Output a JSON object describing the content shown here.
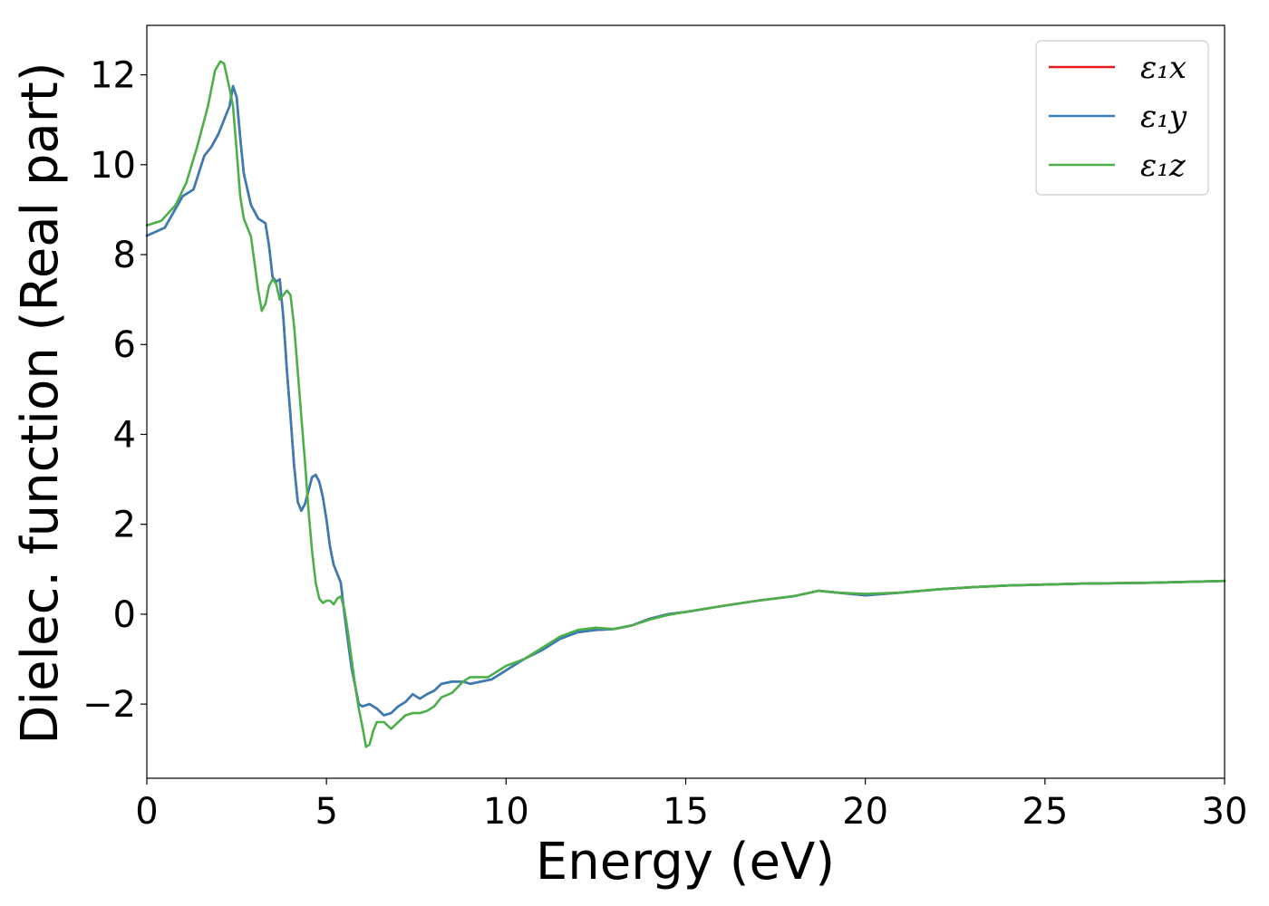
{
  "chart_data": {
    "type": "line",
    "xlabel": "Energy (eV)",
    "ylabel": "Dielec. function (Real part)",
    "xlim": [
      0,
      30
    ],
    "ylim": [
      -3.65,
      13.1
    ],
    "xticks": [
      0,
      5,
      10,
      15,
      20,
      25,
      30
    ],
    "xtick_labels": [
      "0",
      "5",
      "10",
      "15",
      "20",
      "25",
      "30"
    ],
    "yticks": [
      -2,
      0,
      2,
      4,
      6,
      8,
      10,
      12
    ],
    "ytick_labels": [
      "−2",
      "0",
      "2",
      "4",
      "6",
      "8",
      "10",
      "12"
    ],
    "grid": false,
    "legend_position": "top-right",
    "series": [
      {
        "name": "ε₁x",
        "color": "#e41a1c",
        "points": [
          [
            0,
            8.42
          ],
          [
            0.5,
            8.6
          ],
          [
            1,
            9.3
          ],
          [
            1.3,
            9.45
          ],
          [
            1.6,
            10.2
          ],
          [
            1.8,
            10.4
          ],
          [
            2.0,
            10.7
          ],
          [
            2.2,
            11.1
          ],
          [
            2.3,
            11.3
          ],
          [
            2.4,
            11.75
          ],
          [
            2.5,
            11.5
          ],
          [
            2.6,
            10.6
          ],
          [
            2.7,
            9.8
          ],
          [
            2.9,
            9.1
          ],
          [
            3.1,
            8.8
          ],
          [
            3.3,
            8.7
          ],
          [
            3.4,
            8.2
          ],
          [
            3.5,
            7.5
          ],
          [
            3.6,
            7.4
          ],
          [
            3.7,
            7.45
          ],
          [
            3.8,
            6.6
          ],
          [
            3.9,
            5.4
          ],
          [
            4.0,
            4.4
          ],
          [
            4.1,
            3.3
          ],
          [
            4.2,
            2.5
          ],
          [
            4.3,
            2.3
          ],
          [
            4.4,
            2.45
          ],
          [
            4.5,
            2.75
          ],
          [
            4.6,
            3.05
          ],
          [
            4.7,
            3.1
          ],
          [
            4.8,
            2.95
          ],
          [
            4.9,
            2.6
          ],
          [
            5.0,
            2.1
          ],
          [
            5.1,
            1.5
          ],
          [
            5.2,
            1.1
          ],
          [
            5.3,
            0.9
          ],
          [
            5.4,
            0.7
          ],
          [
            5.5,
            0.0
          ],
          [
            5.6,
            -0.6
          ],
          [
            5.7,
            -1.2
          ],
          [
            5.8,
            -1.6
          ],
          [
            5.9,
            -2.0
          ],
          [
            6.0,
            -2.05
          ],
          [
            6.2,
            -2.0
          ],
          [
            6.4,
            -2.1
          ],
          [
            6.6,
            -2.25
          ],
          [
            6.8,
            -2.2
          ],
          [
            7.0,
            -2.05
          ],
          [
            7.2,
            -1.95
          ],
          [
            7.4,
            -1.78
          ],
          [
            7.6,
            -1.88
          ],
          [
            7.8,
            -1.78
          ],
          [
            8.0,
            -1.7
          ],
          [
            8.2,
            -1.55
          ],
          [
            8.5,
            -1.5
          ],
          [
            8.8,
            -1.5
          ],
          [
            9.0,
            -1.55
          ],
          [
            9.3,
            -1.5
          ],
          [
            9.6,
            -1.45
          ],
          [
            10.0,
            -1.25
          ],
          [
            10.5,
            -1.0
          ],
          [
            11.0,
            -0.8
          ],
          [
            11.5,
            -0.55
          ],
          [
            12.0,
            -0.4
          ],
          [
            12.5,
            -0.35
          ],
          [
            13.0,
            -0.33
          ],
          [
            13.5,
            -0.25
          ],
          [
            14.0,
            -0.1
          ],
          [
            14.5,
            0.0
          ],
          [
            15.0,
            0.05
          ],
          [
            16.0,
            0.18
          ],
          [
            17.0,
            0.3
          ],
          [
            18.0,
            0.4
          ],
          [
            18.7,
            0.52
          ],
          [
            19.2,
            0.48
          ],
          [
            20.0,
            0.42
          ],
          [
            21.0,
            0.48
          ],
          [
            22.0,
            0.55
          ],
          [
            23.0,
            0.6
          ],
          [
            24.0,
            0.64
          ],
          [
            25.0,
            0.66
          ],
          [
            26.0,
            0.68
          ],
          [
            27.0,
            0.69
          ],
          [
            28.0,
            0.7
          ],
          [
            29.0,
            0.72
          ],
          [
            30.0,
            0.74
          ]
        ]
      },
      {
        "name": "ε₁y",
        "color": "#377eb8",
        "points": [
          [
            0,
            8.42
          ],
          [
            0.5,
            8.6
          ],
          [
            1,
            9.3
          ],
          [
            1.3,
            9.45
          ],
          [
            1.6,
            10.2
          ],
          [
            1.8,
            10.4
          ],
          [
            2.0,
            10.7
          ],
          [
            2.2,
            11.1
          ],
          [
            2.3,
            11.3
          ],
          [
            2.4,
            11.75
          ],
          [
            2.5,
            11.5
          ],
          [
            2.6,
            10.6
          ],
          [
            2.7,
            9.8
          ],
          [
            2.9,
            9.1
          ],
          [
            3.1,
            8.8
          ],
          [
            3.3,
            8.7
          ],
          [
            3.4,
            8.2
          ],
          [
            3.5,
            7.5
          ],
          [
            3.6,
            7.4
          ],
          [
            3.7,
            7.45
          ],
          [
            3.8,
            6.6
          ],
          [
            3.9,
            5.4
          ],
          [
            4.0,
            4.4
          ],
          [
            4.1,
            3.3
          ],
          [
            4.2,
            2.5
          ],
          [
            4.3,
            2.3
          ],
          [
            4.4,
            2.45
          ],
          [
            4.5,
            2.75
          ],
          [
            4.6,
            3.05
          ],
          [
            4.7,
            3.1
          ],
          [
            4.8,
            2.95
          ],
          [
            4.9,
            2.6
          ],
          [
            5.0,
            2.1
          ],
          [
            5.1,
            1.5
          ],
          [
            5.2,
            1.1
          ],
          [
            5.3,
            0.9
          ],
          [
            5.4,
            0.7
          ],
          [
            5.5,
            0.0
          ],
          [
            5.6,
            -0.6
          ],
          [
            5.7,
            -1.2
          ],
          [
            5.8,
            -1.6
          ],
          [
            5.9,
            -2.0
          ],
          [
            6.0,
            -2.05
          ],
          [
            6.2,
            -2.0
          ],
          [
            6.4,
            -2.1
          ],
          [
            6.6,
            -2.25
          ],
          [
            6.8,
            -2.2
          ],
          [
            7.0,
            -2.05
          ],
          [
            7.2,
            -1.95
          ],
          [
            7.4,
            -1.78
          ],
          [
            7.6,
            -1.88
          ],
          [
            7.8,
            -1.78
          ],
          [
            8.0,
            -1.7
          ],
          [
            8.2,
            -1.55
          ],
          [
            8.5,
            -1.5
          ],
          [
            8.8,
            -1.5
          ],
          [
            9.0,
            -1.55
          ],
          [
            9.3,
            -1.5
          ],
          [
            9.6,
            -1.45
          ],
          [
            10.0,
            -1.25
          ],
          [
            10.5,
            -1.0
          ],
          [
            11.0,
            -0.8
          ],
          [
            11.5,
            -0.55
          ],
          [
            12.0,
            -0.4
          ],
          [
            12.5,
            -0.35
          ],
          [
            13.0,
            -0.33
          ],
          [
            13.5,
            -0.25
          ],
          [
            14.0,
            -0.1
          ],
          [
            14.5,
            0.0
          ],
          [
            15.0,
            0.05
          ],
          [
            16.0,
            0.18
          ],
          [
            17.0,
            0.3
          ],
          [
            18.0,
            0.4
          ],
          [
            18.7,
            0.52
          ],
          [
            19.2,
            0.48
          ],
          [
            20.0,
            0.42
          ],
          [
            21.0,
            0.48
          ],
          [
            22.0,
            0.55
          ],
          [
            23.0,
            0.6
          ],
          [
            24.0,
            0.64
          ],
          [
            25.0,
            0.66
          ],
          [
            26.0,
            0.68
          ],
          [
            27.0,
            0.69
          ],
          [
            28.0,
            0.7
          ],
          [
            29.0,
            0.72
          ],
          [
            30.0,
            0.74
          ]
        ]
      },
      {
        "name": "ε₁z",
        "color": "#4daf4a",
        "points": [
          [
            0,
            8.65
          ],
          [
            0.4,
            8.75
          ],
          [
            0.8,
            9.1
          ],
          [
            1.1,
            9.6
          ],
          [
            1.4,
            10.4
          ],
          [
            1.7,
            11.3
          ],
          [
            1.9,
            12.1
          ],
          [
            2.05,
            12.3
          ],
          [
            2.15,
            12.25
          ],
          [
            2.3,
            11.7
          ],
          [
            2.4,
            11.3
          ],
          [
            2.5,
            10.3
          ],
          [
            2.6,
            9.3
          ],
          [
            2.7,
            8.8
          ],
          [
            2.9,
            8.4
          ],
          [
            3.0,
            7.8
          ],
          [
            3.1,
            7.2
          ],
          [
            3.2,
            6.75
          ],
          [
            3.3,
            6.9
          ],
          [
            3.4,
            7.3
          ],
          [
            3.5,
            7.45
          ],
          [
            3.6,
            7.35
          ],
          [
            3.7,
            7.0
          ],
          [
            3.8,
            7.1
          ],
          [
            3.9,
            7.2
          ],
          [
            4.0,
            7.1
          ],
          [
            4.1,
            6.4
          ],
          [
            4.2,
            5.4
          ],
          [
            4.3,
            4.4
          ],
          [
            4.4,
            3.4
          ],
          [
            4.5,
            2.3
          ],
          [
            4.6,
            1.4
          ],
          [
            4.7,
            0.7
          ],
          [
            4.8,
            0.35
          ],
          [
            4.9,
            0.25
          ],
          [
            5.0,
            0.3
          ],
          [
            5.1,
            0.3
          ],
          [
            5.2,
            0.22
          ],
          [
            5.3,
            0.35
          ],
          [
            5.4,
            0.4
          ],
          [
            5.5,
            0.1
          ],
          [
            5.6,
            -0.4
          ],
          [
            5.7,
            -1.0
          ],
          [
            5.8,
            -1.6
          ],
          [
            5.9,
            -2.1
          ],
          [
            6.0,
            -2.5
          ],
          [
            6.1,
            -2.95
          ],
          [
            6.2,
            -2.9
          ],
          [
            6.3,
            -2.6
          ],
          [
            6.4,
            -2.4
          ],
          [
            6.6,
            -2.4
          ],
          [
            6.8,
            -2.55
          ],
          [
            7.0,
            -2.4
          ],
          [
            7.2,
            -2.25
          ],
          [
            7.4,
            -2.2
          ],
          [
            7.6,
            -2.2
          ],
          [
            7.8,
            -2.15
          ],
          [
            8.0,
            -2.05
          ],
          [
            8.2,
            -1.85
          ],
          [
            8.5,
            -1.75
          ],
          [
            8.8,
            -1.5
          ],
          [
            9.0,
            -1.4
          ],
          [
            9.5,
            -1.4
          ],
          [
            10.0,
            -1.15
          ],
          [
            10.5,
            -1.0
          ],
          [
            11.0,
            -0.75
          ],
          [
            11.5,
            -0.5
          ],
          [
            12.0,
            -0.35
          ],
          [
            12.5,
            -0.3
          ],
          [
            13.0,
            -0.33
          ],
          [
            13.5,
            -0.25
          ],
          [
            14.0,
            -0.12
          ],
          [
            14.5,
            -0.02
          ],
          [
            15.0,
            0.05
          ],
          [
            16.0,
            0.18
          ],
          [
            17.0,
            0.3
          ],
          [
            18.0,
            0.4
          ],
          [
            18.7,
            0.52
          ],
          [
            19.2,
            0.48
          ],
          [
            20.0,
            0.45
          ],
          [
            21.0,
            0.48
          ],
          [
            22.0,
            0.55
          ],
          [
            23.0,
            0.6
          ],
          [
            24.0,
            0.64
          ],
          [
            25.0,
            0.66
          ],
          [
            26.0,
            0.68
          ],
          [
            27.0,
            0.69
          ],
          [
            28.0,
            0.7
          ],
          [
            29.0,
            0.72
          ],
          [
            30.0,
            0.74
          ]
        ]
      }
    ]
  }
}
